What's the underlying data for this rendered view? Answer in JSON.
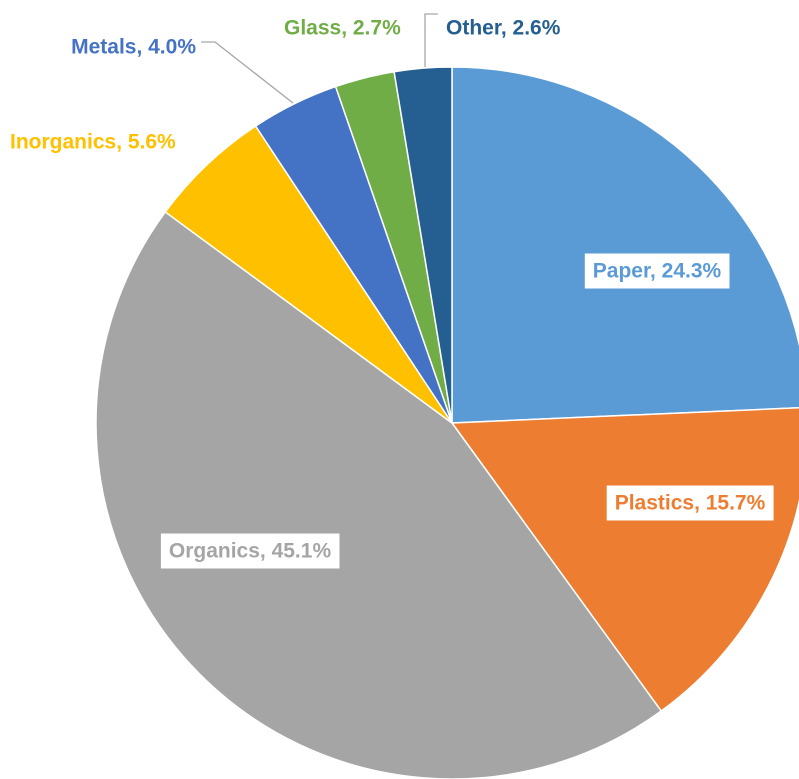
{
  "chart_data": {
    "type": "pie",
    "title": "",
    "legend": "none",
    "start_angle_deg": 0,
    "direction": "clockwise",
    "slices": [
      {
        "label": "Paper",
        "value": 24.3,
        "display": "Paper, 24.3%",
        "color": "#5B9BD5",
        "label_color": "#5B9BD5",
        "label_box": true
      },
      {
        "label": "Plastics",
        "value": 15.7,
        "display": "Plastics, 15.7%",
        "color": "#ED7D31",
        "label_color": "#ED7D31",
        "label_box": true
      },
      {
        "label": "Organics",
        "value": 45.1,
        "display": "Organics, 45.1%",
        "color": "#A5A5A5",
        "label_color": "#A5A5A5",
        "label_box": true
      },
      {
        "label": "Inorganics",
        "value": 5.6,
        "display": "Inorganics, 5.6%",
        "color": "#FFC000",
        "label_color": "#FFC000",
        "label_box": false
      },
      {
        "label": "Metals",
        "value": 4.0,
        "display": "Metals, 4.0%",
        "color": "#4472C4",
        "label_color": "#4472C4",
        "label_box": false
      },
      {
        "label": "Glass",
        "value": 2.7,
        "display": "Glass, 2.7%",
        "color": "#70AD47",
        "label_color": "#70AD47",
        "label_box": false
      },
      {
        "label": "Other",
        "value": 2.6,
        "display": "Other, 2.6%",
        "color": "#255E91",
        "label_color": "#255E91",
        "label_box": false
      }
    ]
  }
}
